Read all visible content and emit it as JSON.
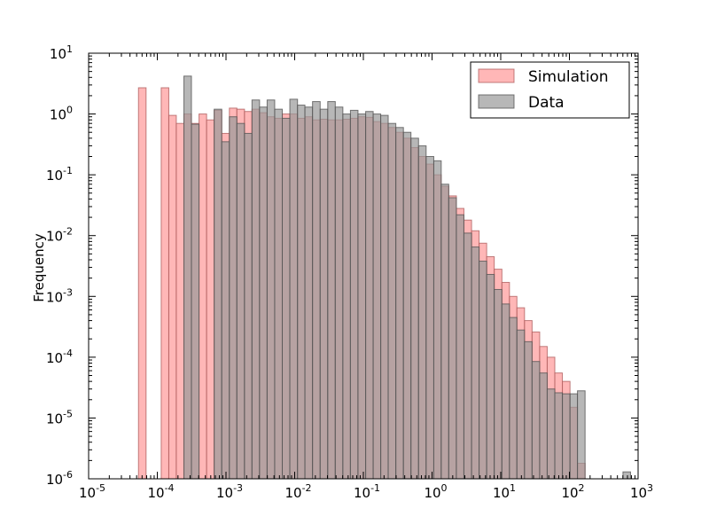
{
  "chart_data": {
    "type": "bar",
    "title": "",
    "xlabel": "",
    "ylabel": "Frequency",
    "xscale": "log",
    "yscale": "log",
    "xlim": [
      1e-05,
      1000
    ],
    "ylim": [
      1e-06,
      10
    ],
    "grid": false,
    "legend_position": "top-right",
    "x_tick_labels": [
      {
        "base": "10",
        "exp": "-5"
      },
      {
        "base": "10",
        "exp": "-4"
      },
      {
        "base": "10",
        "exp": "-3"
      },
      {
        "base": "10",
        "exp": "-2"
      },
      {
        "base": "10",
        "exp": "-1"
      },
      {
        "base": "10",
        "exp": "0"
      },
      {
        "base": "10",
        "exp": "1"
      },
      {
        "base": "10",
        "exp": "2"
      },
      {
        "base": "10",
        "exp": "3"
      }
    ],
    "y_tick_labels": [
      {
        "base": "10",
        "exp": "-6"
      },
      {
        "base": "10",
        "exp": "-5"
      },
      {
        "base": "10",
        "exp": "-4"
      },
      {
        "base": "10",
        "exp": "-3"
      },
      {
        "base": "10",
        "exp": "-2"
      },
      {
        "base": "10",
        "exp": "-1"
      },
      {
        "base": "10",
        "exp": "0"
      },
      {
        "base": "10",
        "exp": "1"
      }
    ],
    "bin_edges": [
      5.32e-05,
      6.86e-05,
      8.84e-05,
      0.000114,
      0.000147,
      0.000189,
      0.000244,
      0.000314,
      0.000405,
      0.000522,
      0.000673,
      0.000867,
      0.00112,
      0.00144,
      0.00186,
      0.00239,
      0.00308,
      0.00397,
      0.00512,
      0.0066,
      0.0085,
      0.011,
      0.0141,
      0.0182,
      0.0235,
      0.0303,
      0.039,
      0.0503,
      0.0648,
      0.0835,
      0.108,
      0.139,
      0.179,
      0.23,
      0.297,
      0.383,
      0.493,
      0.636,
      0.82,
      1.06,
      1.36,
      1.75,
      2.26,
      2.91,
      3.76,
      4.84,
      6.24,
      8.04,
      10.4,
      13.4,
      17.2,
      22.2,
      28.6,
      36.9,
      47.5,
      61.3,
      79,
      102,
      131,
      169,
      218,
      281,
      362,
      467,
      602,
      776,
      1000
    ],
    "series": [
      {
        "name": "Simulation",
        "color": "#ff9999",
        "edge_color": "#b06060",
        "values": [
          2.7,
          0,
          0,
          2.7,
          0.95,
          0.7,
          1.0,
          0.7,
          1.0,
          0.8,
          1.15,
          0.48,
          1.25,
          1.2,
          1.1,
          1.2,
          1.05,
          0.9,
          0.85,
          1.0,
          1.0,
          0.85,
          0.9,
          0.8,
          0.82,
          0.8,
          0.8,
          0.82,
          0.85,
          0.9,
          0.88,
          0.75,
          0.7,
          0.6,
          0.5,
          0.4,
          0.28,
          0.2,
          0.15,
          0.1,
          0.065,
          0.045,
          0.028,
          0.018,
          0.012,
          0.0075,
          0.0045,
          0.0028,
          0.0017,
          0.001,
          0.00065,
          0.0004,
          0.00026,
          0.00015,
          0.0001,
          5.5e-05,
          4e-05,
          1.5e-05,
          1.8e-06,
          0,
          0,
          0,
          0,
          0,
          0
        ]
      },
      {
        "name": "Data",
        "color": "#999999",
        "edge_color": "#555555",
        "values": [
          0,
          0,
          0,
          0,
          0,
          0,
          4.2,
          0.68,
          0,
          0,
          1.2,
          0.35,
          0.9,
          0.7,
          0.48,
          1.7,
          1.3,
          1.7,
          1.2,
          0.85,
          1.75,
          1.4,
          1.3,
          1.6,
          1.2,
          1.6,
          1.3,
          1.0,
          1.15,
          1.0,
          1.1,
          1.0,
          0.95,
          0.7,
          0.6,
          0.5,
          0.4,
          0.3,
          0.2,
          0.17,
          0.07,
          0.042,
          0.022,
          0.011,
          0.0065,
          0.0038,
          0.0023,
          0.0013,
          0.00075,
          0.00045,
          0.00028,
          0.00018,
          8.5e-05,
          5.5e-05,
          3e-05,
          2.6e-05,
          2.5e-05,
          2.5e-05,
          2.8e-05,
          0,
          0,
          0,
          0,
          0,
          1.3e-06
        ]
      }
    ]
  }
}
